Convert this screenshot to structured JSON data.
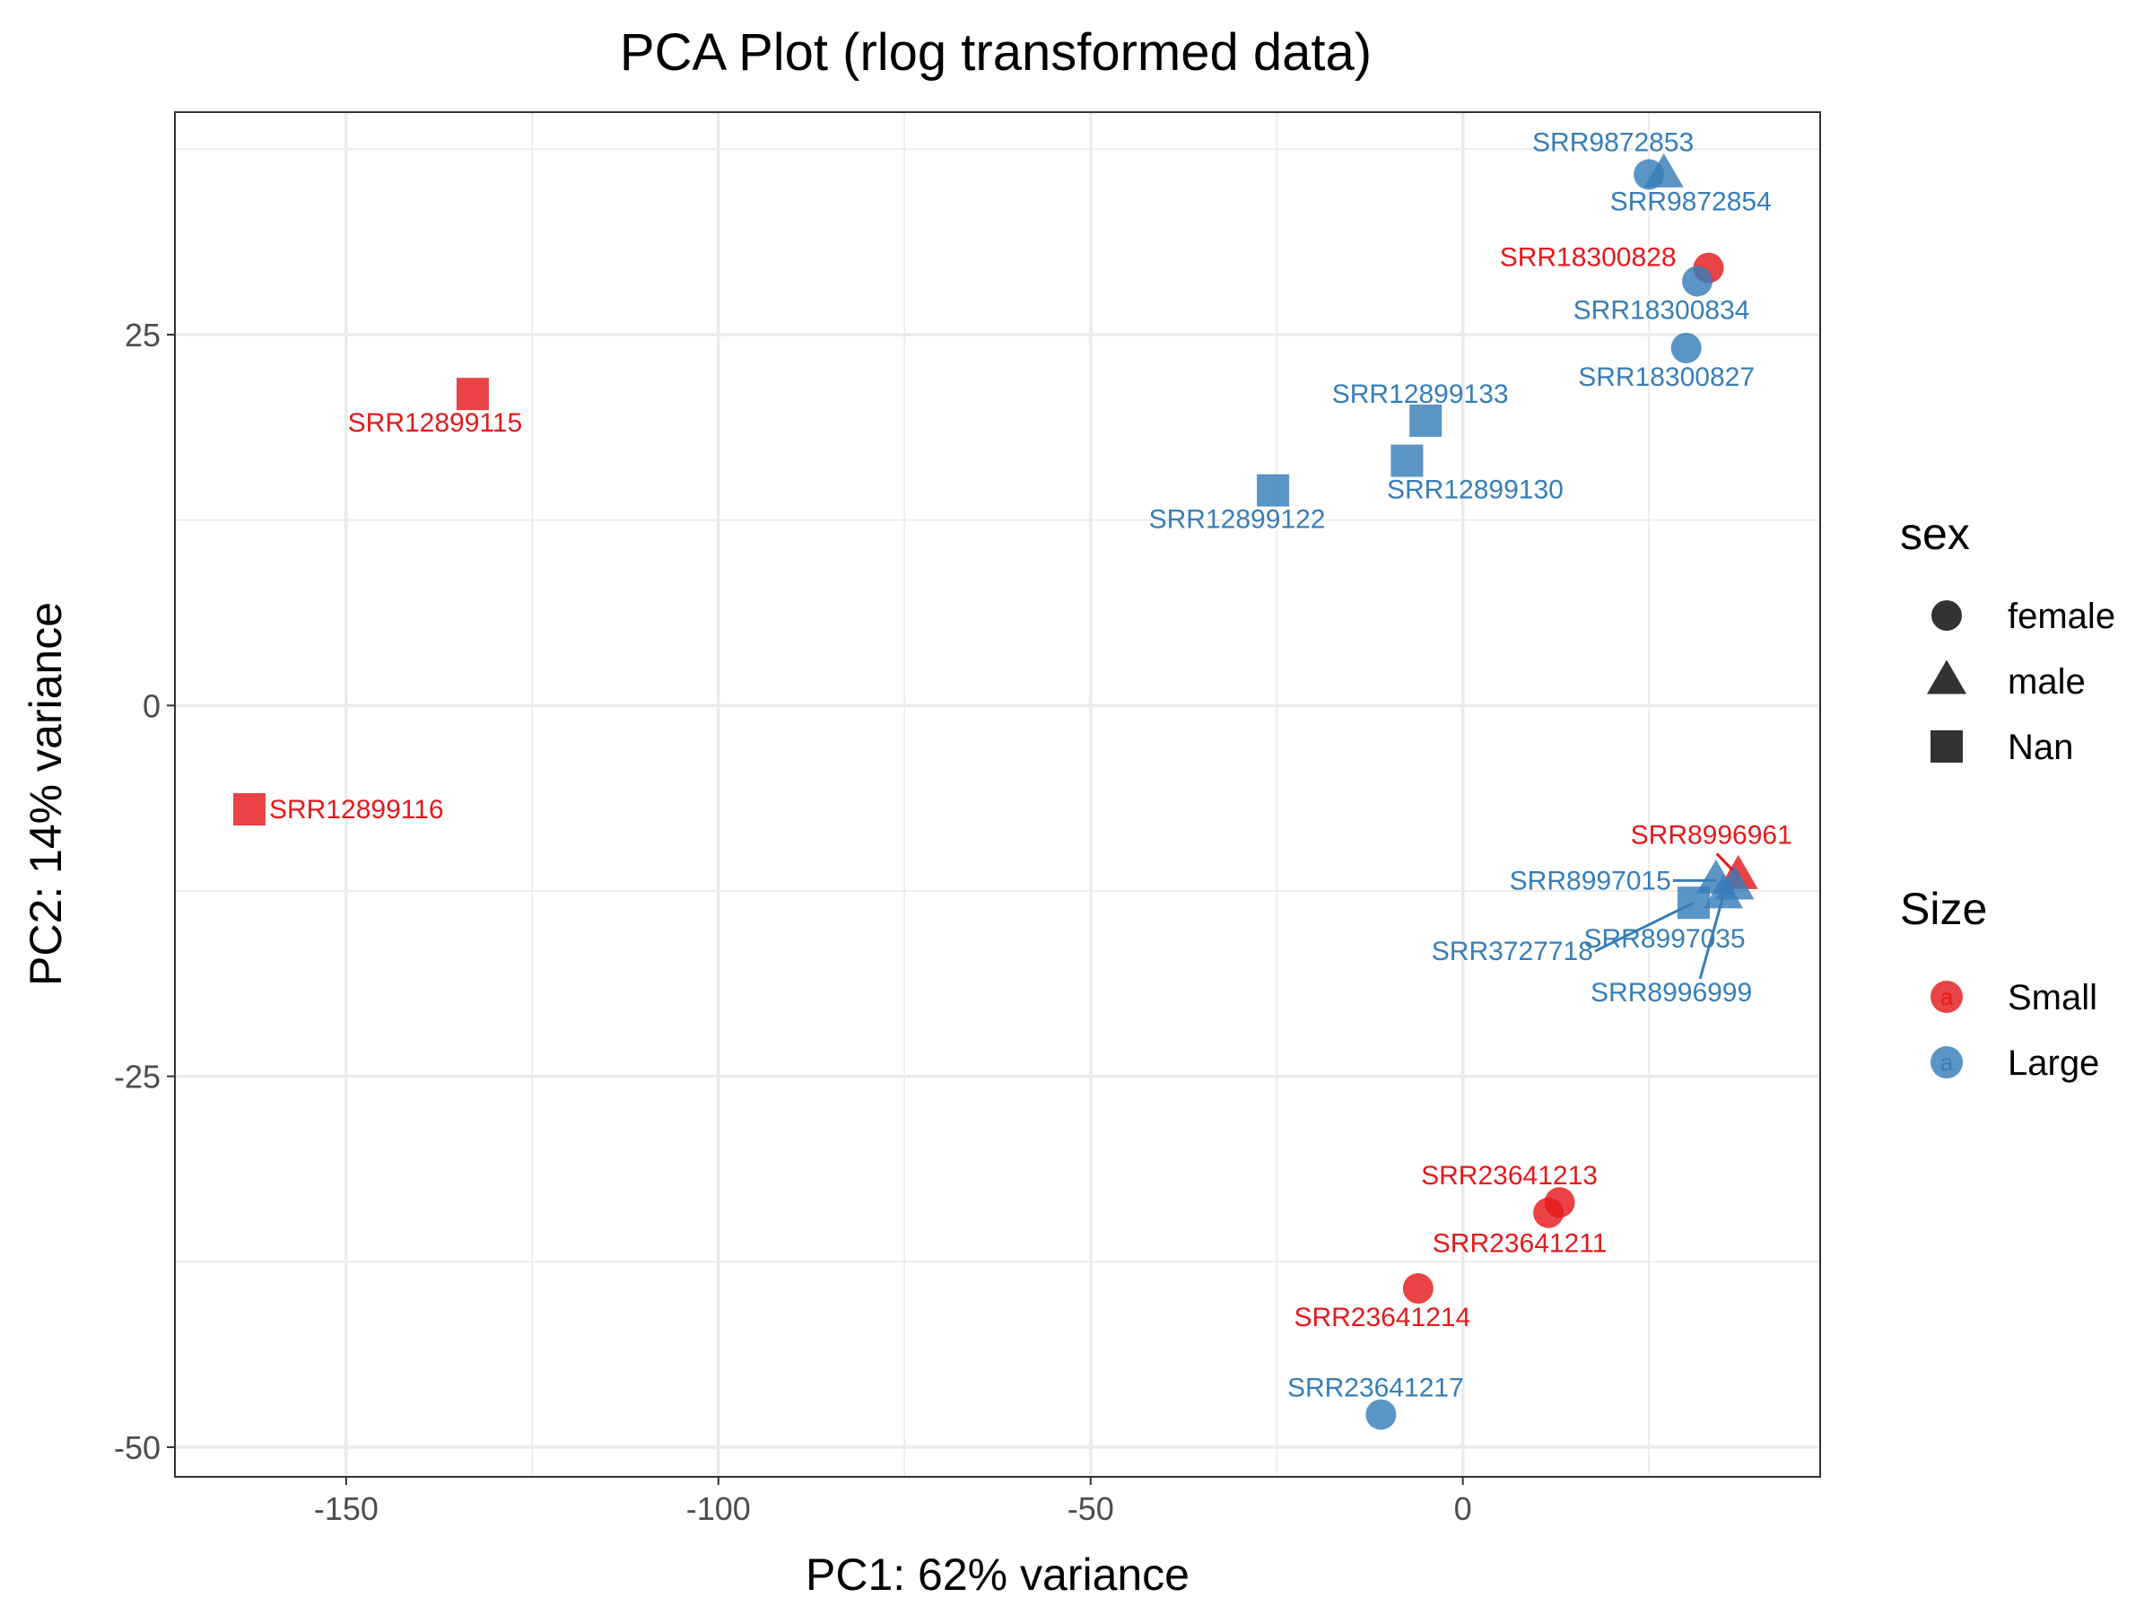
{
  "chart_data": {
    "type": "scatter",
    "title": "PCA Plot (rlog transformed data)",
    "xlabel": "PC1: 62% variance",
    "ylabel": "PC2: 14% variance",
    "xlim": [
      -173,
      48
    ],
    "ylim": [
      -52,
      40
    ],
    "x_ticks": [
      -150,
      -100,
      -50,
      0
    ],
    "y_ticks": [
      -50,
      -25,
      0,
      25
    ],
    "grid": true,
    "legend_position": "right",
    "colors": {
      "Small": "#e41a1c",
      "Large": "#377eb8"
    },
    "legends": {
      "shape": {
        "title": "sex",
        "items": [
          {
            "label": "female",
            "shape": "circle"
          },
          {
            "label": "male",
            "shape": "triangle"
          },
          {
            "label": "Nan",
            "shape": "square"
          }
        ]
      },
      "color": {
        "title": "Size",
        "key_glyph": "a",
        "items": [
          {
            "label": "Small"
          },
          {
            "label": "Large"
          }
        ]
      }
    },
    "points": [
      {
        "id": "SRR9872853",
        "x": 25,
        "y": 35.8,
        "sex": "female",
        "size": "Large"
      },
      {
        "id": "SRR9872854",
        "x": 27,
        "y": 35.8,
        "sex": "male",
        "size": "Large"
      },
      {
        "id": "SRR18300828",
        "x": 33,
        "y": 29.5,
        "sex": "female",
        "size": "Small"
      },
      {
        "id": "SRR18300834",
        "x": 31.5,
        "y": 28.6,
        "sex": "female",
        "size": "Large"
      },
      {
        "id": "SRR18300827",
        "x": 30,
        "y": 24.1,
        "sex": "female",
        "size": "Large"
      },
      {
        "id": "SRR12899115",
        "x": -133,
        "y": 21.0,
        "sex": "Nan",
        "size": "Small"
      },
      {
        "id": "SRR12899133",
        "x": -5,
        "y": 19.2,
        "sex": "Nan",
        "size": "Large"
      },
      {
        "id": "SRR12899130",
        "x": -7.5,
        "y": 16.5,
        "sex": "Nan",
        "size": "Large"
      },
      {
        "id": "SRR12899122",
        "x": -25.5,
        "y": 14.5,
        "sex": "Nan",
        "size": "Large"
      },
      {
        "id": "SRR12899116",
        "x": -163,
        "y": -7.0,
        "sex": "Nan",
        "size": "Small"
      },
      {
        "id": "SRR8996961",
        "x": 37,
        "y": -11.5,
        "sex": "male",
        "size": "Small"
      },
      {
        "id": "SRR8997015",
        "x": 34,
        "y": -11.8,
        "sex": "male",
        "size": "Large"
      },
      {
        "id": "SRR8997035",
        "x": 36.5,
        "y": -12.2,
        "sex": "male",
        "size": "Large"
      },
      {
        "id": "SRR3727718",
        "x": 31,
        "y": -13.3,
        "sex": "Nan",
        "size": "Large"
      },
      {
        "id": "SRR8996999",
        "x": 35,
        "y": -12.8,
        "sex": "male",
        "size": "Large"
      },
      {
        "id": "SRR23641213",
        "x": 13,
        "y": -33.5,
        "sex": "female",
        "size": "Small"
      },
      {
        "id": "SRR23641211",
        "x": 11.5,
        "y": -34.2,
        "sex": "female",
        "size": "Small"
      },
      {
        "id": "SRR23641214",
        "x": -6,
        "y": -39.3,
        "sex": "female",
        "size": "Small"
      },
      {
        "id": "SRR23641217",
        "x": -11,
        "y": -47.8,
        "sex": "female",
        "size": "Large"
      }
    ]
  }
}
